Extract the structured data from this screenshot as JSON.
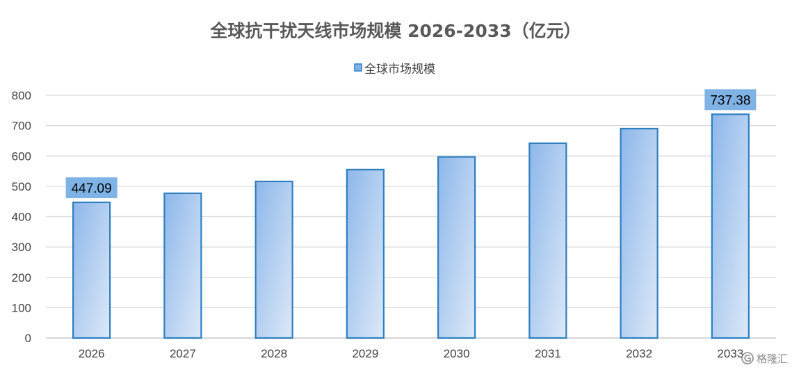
{
  "chart_data": {
    "type": "bar",
    "title": "全球抗干扰天线市场规模 2026-2033（亿元）",
    "categories": [
      "2026",
      "2027",
      "2028",
      "2029",
      "2030",
      "2031",
      "2032",
      "2033"
    ],
    "series": [
      {
        "name": "全球市场规模",
        "values": [
          447.09,
          477,
          516,
          555,
          597,
          642,
          690,
          737.38
        ]
      }
    ],
    "data_labels": [
      {
        "index": 0,
        "text": "447.09"
      },
      {
        "index": 7,
        "text": "737.38"
      }
    ],
    "ylim": [
      0,
      800
    ],
    "yticks": [
      0,
      100,
      200,
      300,
      400,
      500,
      600,
      700,
      800
    ],
    "grid": true,
    "legend_position": "top"
  },
  "colors": {
    "bar_fill_start": "#8db7ea",
    "bar_fill_end": "#dde9f8",
    "bar_border": "#2f7fc1",
    "label_bg": "#7fb2e5",
    "grid": "#d9d9d9"
  },
  "watermark": {
    "text": "格隆汇",
    "icon": "gelonghui-logo-icon"
  }
}
